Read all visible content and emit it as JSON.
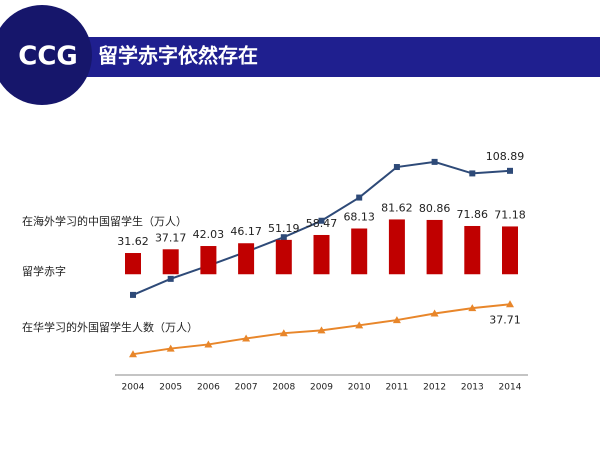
{
  "brand": "CCG",
  "title": "留学赤字依然存在",
  "chart_data": {
    "type": "line",
    "categories": [
      "2004",
      "2005",
      "2006",
      "2007",
      "2008",
      "2009",
      "2010",
      "2011",
      "2012",
      "2013",
      "2014"
    ],
    "ylim": [
      0,
      120
    ],
    "y2lim": [
      -150,
      185
    ],
    "series": [
      {
        "name": "在海外学习的中国留学生（万人）",
        "type": "line",
        "color": "#2e4a78",
        "marker": "square",
        "values": [
          42.72,
          51.27,
          58.33,
          65.67,
          73.49,
          82.27,
          94.63,
          110.92,
          113.66,
          107.51,
          108.89
        ]
      },
      {
        "name": "留学赤字",
        "type": "bar",
        "axis": "y2",
        "color": "#c00000",
        "values": [
          31.62,
          37.17,
          42.03,
          46.17,
          51.19,
          58.47,
          68.13,
          81.62,
          80.86,
          71.86,
          71.18
        ]
      },
      {
        "name": "在华学习的外国留学生人数（万人）",
        "type": "line",
        "color": "#e8862a",
        "marker": "triangle",
        "values": [
          11.1,
          14.1,
          16.3,
          19.5,
          22.3,
          23.8,
          26.5,
          29.3,
          32.8,
          35.65,
          37.71
        ]
      }
    ]
  }
}
